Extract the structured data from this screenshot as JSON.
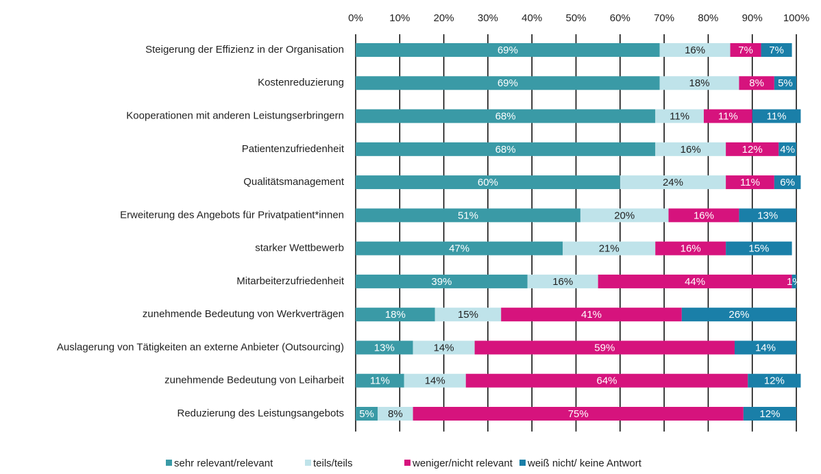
{
  "chart_data": {
    "type": "stacked_bar_horizontal",
    "categories": [
      "Steigerung der Effizienz in der Organisation",
      "Kostenreduzierung",
      "Kooperationen mit anderen Leistungserbringern",
      "Patientenzufriedenheit",
      "Qualitätsmanagement",
      "Erweiterung des Angebots für Privatpatient*innen",
      "starker Wettbewerb",
      "Mitarbeiterzufriedenheit",
      "zunehmende Bedeutung von Werkverträgen",
      "Auslagerung von Tätigkeiten an externe Anbieter (Outsourcing)",
      "zunehmende Bedeutung von Leiharbeit",
      "Reduzierung des Leistungsangebots"
    ],
    "series": [
      {
        "name": "sehr relevant/relevant",
        "color": "#3a9aa6",
        "values": [
          69,
          69,
          68,
          68,
          60,
          51,
          47,
          39,
          18,
          13,
          11,
          5
        ],
        "value_labels": [
          "69%",
          "69%",
          "68%",
          "68%",
          "60%",
          "51%",
          "47%",
          "39%",
          "18%",
          "13%",
          "11%",
          "5%"
        ]
      },
      {
        "name": "teils/teils",
        "color": "#bfe3ea",
        "values": [
          16,
          18,
          11,
          16,
          24,
          20,
          21,
          16,
          15,
          14,
          14,
          8
        ],
        "value_labels": [
          "16%",
          "18%",
          "11%",
          "16%",
          "24%",
          "20%",
          "21%",
          "16%",
          "15%",
          "14%",
          "14%",
          "8%"
        ]
      },
      {
        "name": "weniger/nicht relevant",
        "color": "#d6137d",
        "values": [
          7,
          8,
          11,
          12,
          11,
          16,
          16,
          44,
          41,
          59,
          64,
          75
        ],
        "value_labels": [
          "7%",
          "8%",
          "11%",
          "12%",
          "11%",
          "16%",
          "16%",
          "44%",
          "41%",
          "59%",
          "64%",
          "75%"
        ]
      },
      {
        "name": "weiß nicht/ keine Antwort",
        "color": "#1a7fa8",
        "values": [
          7,
          5,
          11,
          4,
          6,
          13,
          15,
          1,
          26,
          14,
          12,
          12
        ],
        "value_labels": [
          "7%",
          "5%",
          "11%",
          "4%",
          "6%",
          "13%",
          "15%",
          "1%",
          "26%",
          "14%",
          "12%",
          "12%"
        ]
      }
    ],
    "xlim": [
      0,
      100
    ],
    "xticks": [
      {
        "value": 0,
        "label": "0%"
      },
      {
        "value": 10,
        "label": "10%"
      },
      {
        "value": 20,
        "label": "20%"
      },
      {
        "value": 30,
        "label": "30%"
      },
      {
        "value": 40,
        "label": "40%"
      },
      {
        "value": 50,
        "label": "50%"
      },
      {
        "value": 60,
        "label": "60%"
      },
      {
        "value": 70,
        "label": "70%"
      },
      {
        "value": 80,
        "label": "80%"
      },
      {
        "value": 90,
        "label": "90%"
      },
      {
        "value": 100,
        "label": "100%"
      }
    ],
    "grid": true
  }
}
